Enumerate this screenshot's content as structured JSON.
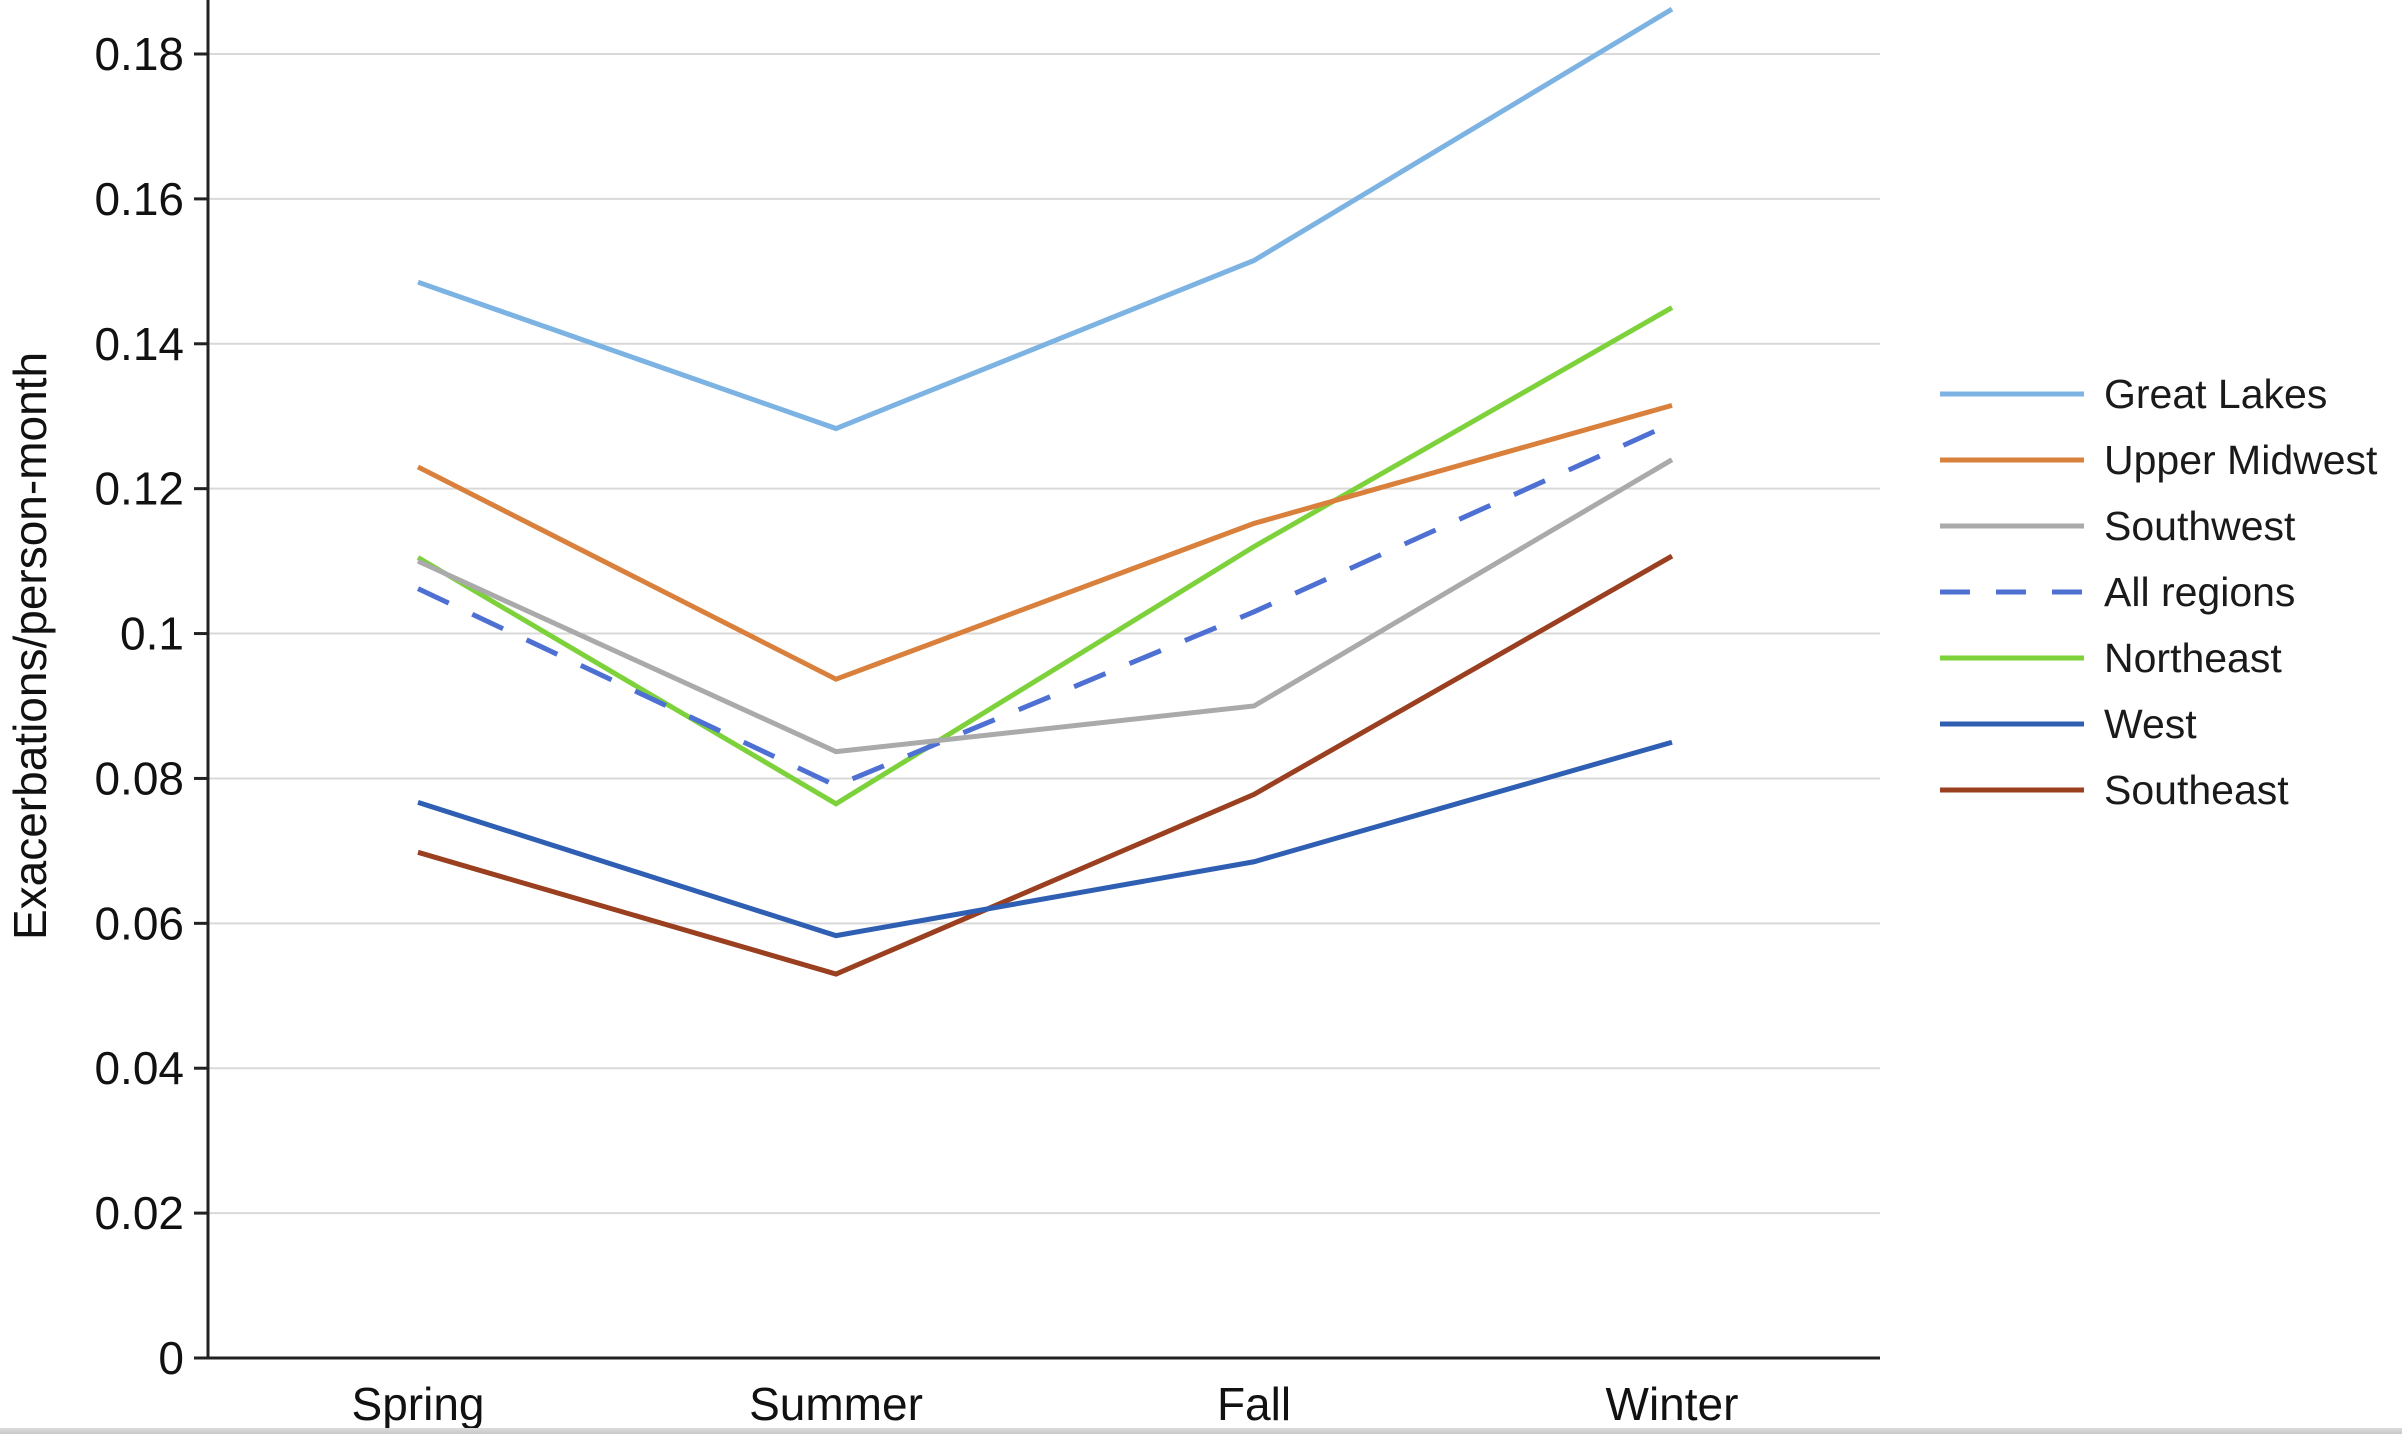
{
  "chart_data": {
    "type": "line",
    "title": "",
    "xlabel": "",
    "ylabel": "Exacerbations/person-month",
    "categories": [
      "Spring",
      "Summer",
      "Fall",
      "Winter"
    ],
    "ylim": [
      0,
      0.18
    ],
    "yticks": [
      "0",
      "0.02",
      "0.04",
      "0.06",
      "0.08",
      "0.1",
      "0.12",
      "0.14",
      "0.16",
      "0.18"
    ],
    "grid": true,
    "legend_position": "right",
    "series": [
      {
        "name": "Great Lakes",
        "color": "#7cb3e3",
        "dashed": false,
        "values": [
          0.1485,
          0.1283,
          0.1515,
          0.1862
        ]
      },
      {
        "name": "Upper Midwest",
        "color": "#d9803c",
        "dashed": false,
        "values": [
          0.123,
          0.0937,
          0.1152,
          0.1315
        ]
      },
      {
        "name": "Southwest",
        "color": "#aaaaaa",
        "dashed": false,
        "values": [
          0.11,
          0.0837,
          0.09,
          0.124
        ]
      },
      {
        "name": "All regions",
        "color": "#4e70d3",
        "dashed": true,
        "values": [
          0.1062,
          0.079,
          0.103,
          0.129
        ]
      },
      {
        "name": "Northeast",
        "color": "#7dd23c",
        "dashed": false,
        "values": [
          0.1105,
          0.0765,
          0.112,
          0.145
        ]
      },
      {
        "name": "West",
        "color": "#2f5fb3",
        "dashed": false,
        "values": [
          0.0767,
          0.0583,
          0.0685,
          0.085
        ]
      },
      {
        "name": "Southeast",
        "color": "#9a3f1f",
        "dashed": false,
        "values": [
          0.0698,
          0.053,
          0.0778,
          0.1107
        ]
      }
    ]
  }
}
